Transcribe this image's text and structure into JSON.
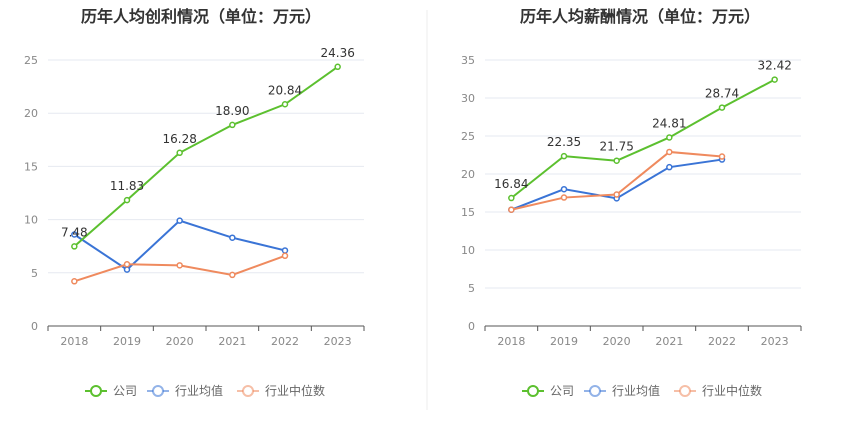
{
  "chart_data": [
    {
      "type": "line",
      "title": "历年人均创利情况（单位：万元）",
      "categories": [
        "2018",
        "2019",
        "2020",
        "2021",
        "2022",
        "2023"
      ],
      "ylim": [
        0,
        25
      ],
      "yticks": [
        0,
        5,
        10,
        15,
        20,
        25
      ],
      "grid": true,
      "legend": "bottom-center",
      "series": [
        {
          "name": "公司",
          "color": "#5cc02f",
          "values": [
            7.48,
            11.83,
            16.28,
            18.9,
            20.84,
            24.36
          ],
          "labels": [
            "7.48",
            "11.83",
            "16.28",
            "18.90",
            "20.84",
            "24.36"
          ]
        },
        {
          "name": "行业均值",
          "color": "#3a74d6",
          "values": [
            8.6,
            5.3,
            9.9,
            8.3,
            7.1,
            null
          ]
        },
        {
          "name": "行业中位数",
          "color": "#ef8a5e",
          "values": [
            4.2,
            5.8,
            5.7,
            4.8,
            6.6,
            null
          ]
        }
      ]
    },
    {
      "type": "line",
      "title": "历年人均薪酬情况（单位：万元）",
      "categories": [
        "2018",
        "2019",
        "2020",
        "2021",
        "2022",
        "2023"
      ],
      "ylim": [
        0,
        35
      ],
      "yticks": [
        0,
        5,
        10,
        15,
        20,
        25,
        30,
        35
      ],
      "grid": true,
      "legend": "bottom-center",
      "series": [
        {
          "name": "公司",
          "color": "#5cc02f",
          "values": [
            16.84,
            22.35,
            21.75,
            24.81,
            28.74,
            32.42
          ],
          "labels": [
            "16.84",
            "22.35",
            "21.75",
            "24.81",
            "28.74",
            "32.42"
          ]
        },
        {
          "name": "行业均值",
          "color": "#3a74d6",
          "values": [
            15.3,
            18.0,
            16.8,
            20.9,
            21.9,
            null
          ]
        },
        {
          "name": "行业中位数",
          "color": "#ef8a5e",
          "values": [
            15.3,
            16.9,
            17.3,
            22.9,
            22.3,
            null
          ]
        }
      ]
    }
  ]
}
